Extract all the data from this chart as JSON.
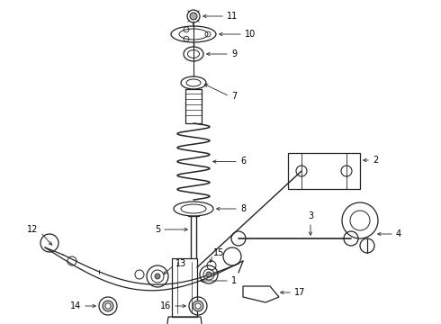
{
  "bg_color": "#ffffff",
  "line_color": "#222222",
  "fig_width": 4.9,
  "fig_height": 3.6,
  "dpi": 100,
  "xlim": [
    0,
    490
  ],
  "ylim": [
    0,
    360
  ]
}
